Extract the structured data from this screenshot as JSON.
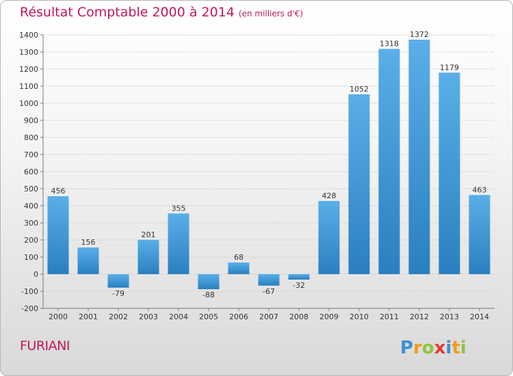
{
  "title": "Résultat Comptable 2000 à 2014",
  "subtitle": "(en milliers d'€)",
  "commune": "FURIANI",
  "logo_text": "Proxiti",
  "colors": {
    "title": "#c2185b",
    "bar_top": "#5aafe8",
    "bar_bottom": "#2a7fc0",
    "grid": "#cccccc"
  },
  "chart_data": {
    "type": "bar",
    "title": "Résultat Comptable 2000 à 2014",
    "categories": [
      "2000",
      "2001",
      "2002",
      "2003",
      "2004",
      "2005",
      "2006",
      "2007",
      "2008",
      "2009",
      "2010",
      "2011",
      "2012",
      "2013",
      "2014"
    ],
    "values": [
      456,
      156,
      -79,
      201,
      355,
      -88,
      68,
      -67,
      -32,
      428,
      1052,
      1318,
      1372,
      1179,
      463
    ],
    "ylim": [
      -200,
      1400
    ],
    "yticks": [
      -200,
      -100,
      0,
      100,
      200,
      300,
      400,
      500,
      600,
      700,
      800,
      900,
      1000,
      1100,
      1200,
      1300,
      1400
    ],
    "grid": true,
    "xlabel": "",
    "ylabel": ""
  }
}
